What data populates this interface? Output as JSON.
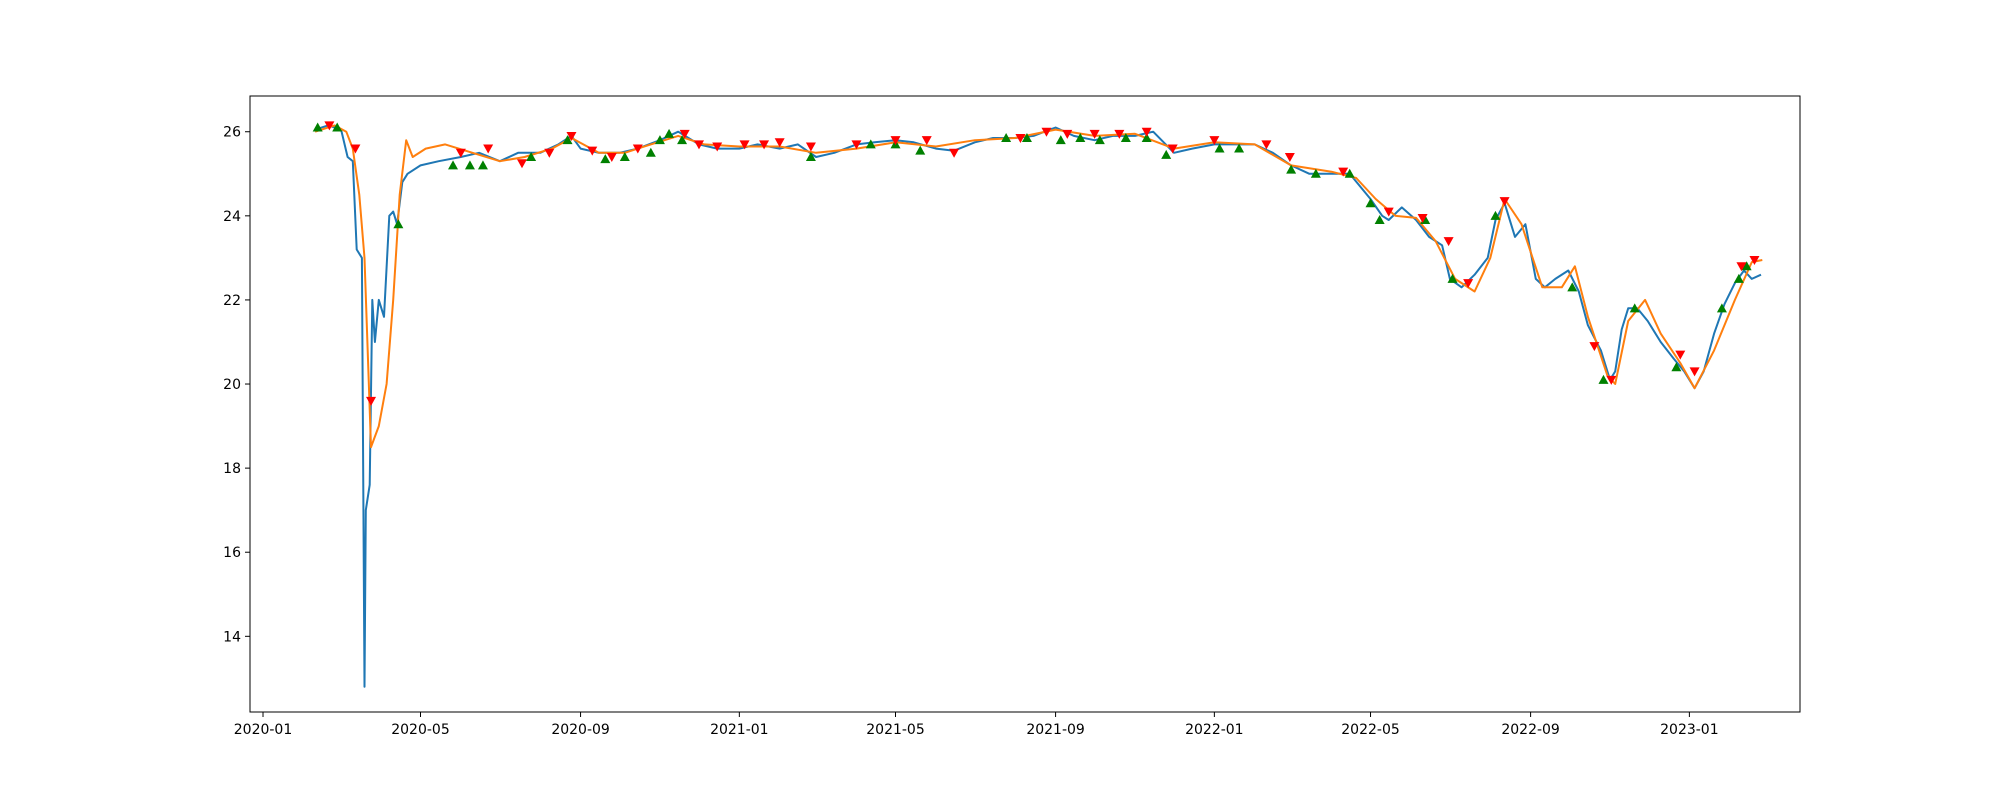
{
  "chart_data": {
    "type": "line",
    "title": "",
    "xlabel": "",
    "ylabel": "",
    "x_range": [
      "2019-12-22",
      "2023-03-27"
    ],
    "ylim": [
      12.2,
      26.85
    ],
    "grid": false,
    "legend": "none",
    "x_ticks": [
      "2020-01",
      "2020-05",
      "2020-09",
      "2021-01",
      "2021-05",
      "2021-09",
      "2022-01",
      "2022-05",
      "2022-09",
      "2023-01"
    ],
    "y_ticks": [
      14,
      16,
      18,
      20,
      22,
      24,
      26
    ],
    "colors": {
      "price": "#1f77b4",
      "moving_average": "#ff7f0e",
      "buy_marker": "#008000",
      "sell_marker": "#ff0000"
    },
    "series": [
      {
        "key": "price",
        "values": [
          [
            "2020-02-10",
            26.05
          ],
          [
            "2020-02-20",
            26.15
          ],
          [
            "2020-03-01",
            26.05
          ],
          [
            "2020-03-06",
            25.4
          ],
          [
            "2020-03-10",
            25.3
          ],
          [
            "2020-03-13",
            23.2
          ],
          [
            "2020-03-17",
            23.0
          ],
          [
            "2020-03-19",
            12.8
          ],
          [
            "2020-03-20",
            17.0
          ],
          [
            "2020-03-23",
            17.6
          ],
          [
            "2020-03-25",
            22.0
          ],
          [
            "2020-03-27",
            21.0
          ],
          [
            "2020-03-30",
            22.0
          ],
          [
            "2020-04-03",
            21.6
          ],
          [
            "2020-04-07",
            24.0
          ],
          [
            "2020-04-10",
            24.1
          ],
          [
            "2020-04-13",
            23.8
          ],
          [
            "2020-04-17",
            24.8
          ],
          [
            "2020-04-21",
            25.0
          ],
          [
            "2020-05-01",
            25.2
          ],
          [
            "2020-05-15",
            25.3
          ],
          [
            "2020-06-01",
            25.4
          ],
          [
            "2020-06-15",
            25.5
          ],
          [
            "2020-07-01",
            25.3
          ],
          [
            "2020-07-15",
            25.5
          ],
          [
            "2020-08-01",
            25.5
          ],
          [
            "2020-08-15",
            25.7
          ],
          [
            "2020-08-25",
            25.9
          ],
          [
            "2020-09-01",
            25.6
          ],
          [
            "2020-09-15",
            25.5
          ],
          [
            "2020-10-01",
            25.5
          ],
          [
            "2020-10-15",
            25.6
          ],
          [
            "2020-11-01",
            25.8
          ],
          [
            "2020-11-15",
            26.0
          ],
          [
            "2020-12-01",
            25.7
          ],
          [
            "2020-12-15",
            25.6
          ],
          [
            "2021-01-01",
            25.6
          ],
          [
            "2021-01-15",
            25.7
          ],
          [
            "2021-02-01",
            25.6
          ],
          [
            "2021-02-15",
            25.7
          ],
          [
            "2021-03-01",
            25.4
          ],
          [
            "2021-03-15",
            25.5
          ],
          [
            "2021-04-01",
            25.7
          ],
          [
            "2021-04-15",
            25.75
          ],
          [
            "2021-05-01",
            25.8
          ],
          [
            "2021-05-15",
            25.75
          ],
          [
            "2021-06-01",
            25.6
          ],
          [
            "2021-06-15",
            25.55
          ],
          [
            "2021-07-01",
            25.75
          ],
          [
            "2021-07-15",
            25.85
          ],
          [
            "2021-08-01",
            25.85
          ],
          [
            "2021-08-15",
            25.9
          ],
          [
            "2021-09-01",
            26.1
          ],
          [
            "2021-09-15",
            25.9
          ],
          [
            "2021-10-01",
            25.8
          ],
          [
            "2021-10-15",
            25.9
          ],
          [
            "2021-11-01",
            25.9
          ],
          [
            "2021-11-15",
            26.0
          ],
          [
            "2021-12-01",
            25.5
          ],
          [
            "2021-12-15",
            25.6
          ],
          [
            "2022-01-01",
            25.7
          ],
          [
            "2022-01-15",
            25.7
          ],
          [
            "2022-02-01",
            25.7
          ],
          [
            "2022-02-15",
            25.5
          ],
          [
            "2022-03-01",
            25.2
          ],
          [
            "2022-03-15",
            25.0
          ],
          [
            "2022-04-01",
            25.0
          ],
          [
            "2022-04-15",
            25.0
          ],
          [
            "2022-05-01",
            24.4
          ],
          [
            "2022-05-10",
            24.0
          ],
          [
            "2022-05-15",
            23.9
          ],
          [
            "2022-05-25",
            24.2
          ],
          [
            "2022-06-05",
            23.9
          ],
          [
            "2022-06-15",
            23.5
          ],
          [
            "2022-06-25",
            23.3
          ],
          [
            "2022-07-01",
            22.5
          ],
          [
            "2022-07-10",
            22.3
          ],
          [
            "2022-07-20",
            22.6
          ],
          [
            "2022-07-30",
            23.0
          ],
          [
            "2022-08-05",
            23.9
          ],
          [
            "2022-08-12",
            24.3
          ],
          [
            "2022-08-20",
            23.5
          ],
          [
            "2022-08-28",
            23.8
          ],
          [
            "2022-09-05",
            22.5
          ],
          [
            "2022-09-12",
            22.3
          ],
          [
            "2022-09-20",
            22.5
          ],
          [
            "2022-09-30",
            22.7
          ],
          [
            "2022-10-08",
            22.2
          ],
          [
            "2022-10-15",
            21.4
          ],
          [
            "2022-10-25",
            20.8
          ],
          [
            "2022-11-01",
            20.1
          ],
          [
            "2022-11-05",
            20.3
          ],
          [
            "2022-11-10",
            21.3
          ],
          [
            "2022-11-15",
            21.8
          ],
          [
            "2022-11-22",
            21.8
          ],
          [
            "2022-11-30",
            21.5
          ],
          [
            "2022-12-10",
            21.0
          ],
          [
            "2022-12-20",
            20.6
          ],
          [
            "2022-12-28",
            20.3
          ],
          [
            "2023-01-05",
            19.9
          ],
          [
            "2023-01-12",
            20.3
          ],
          [
            "2023-01-20",
            21.2
          ],
          [
            "2023-01-28",
            21.9
          ],
          [
            "2023-02-05",
            22.4
          ],
          [
            "2023-02-12",
            22.7
          ],
          [
            "2023-02-18",
            22.5
          ],
          [
            "2023-02-25",
            22.6
          ]
        ]
      },
      {
        "key": "moving_average",
        "values": [
          [
            "2020-02-10",
            26.0
          ],
          [
            "2020-02-25",
            26.15
          ],
          [
            "2020-03-05",
            26.0
          ],
          [
            "2020-03-10",
            25.6
          ],
          [
            "2020-03-15",
            24.5
          ],
          [
            "2020-03-19",
            23.0
          ],
          [
            "2020-03-24",
            18.5
          ],
          [
            "2020-03-30",
            19.0
          ],
          [
            "2020-04-05",
            20.0
          ],
          [
            "2020-04-10",
            22.0
          ],
          [
            "2020-04-15",
            24.5
          ],
          [
            "2020-04-20",
            25.8
          ],
          [
            "2020-04-25",
            25.4
          ],
          [
            "2020-05-05",
            25.6
          ],
          [
            "2020-05-20",
            25.7
          ],
          [
            "2020-06-10",
            25.5
          ],
          [
            "2020-07-01",
            25.3
          ],
          [
            "2020-07-20",
            25.4
          ],
          [
            "2020-08-10",
            25.6
          ],
          [
            "2020-08-25",
            25.85
          ],
          [
            "2020-09-15",
            25.5
          ],
          [
            "2020-10-05",
            25.5
          ],
          [
            "2020-10-25",
            25.7
          ],
          [
            "2020-11-15",
            25.9
          ],
          [
            "2020-12-05",
            25.7
          ],
          [
            "2021-01-01",
            25.65
          ],
          [
            "2021-02-01",
            25.65
          ],
          [
            "2021-03-01",
            25.5
          ],
          [
            "2021-04-01",
            25.6
          ],
          [
            "2021-05-01",
            25.75
          ],
          [
            "2021-06-01",
            25.65
          ],
          [
            "2021-07-01",
            25.8
          ],
          [
            "2021-08-01",
            25.85
          ],
          [
            "2021-09-01",
            26.05
          ],
          [
            "2021-10-01",
            25.9
          ],
          [
            "2021-11-01",
            25.95
          ],
          [
            "2021-12-01",
            25.6
          ],
          [
            "2022-01-01",
            25.75
          ],
          [
            "2022-02-01",
            25.7
          ],
          [
            "2022-03-01",
            25.2
          ],
          [
            "2022-04-01",
            25.05
          ],
          [
            "2022-04-20",
            24.9
          ],
          [
            "2022-05-05",
            24.4
          ],
          [
            "2022-05-20",
            24.0
          ],
          [
            "2022-06-05",
            23.95
          ],
          [
            "2022-06-20",
            23.4
          ],
          [
            "2022-07-05",
            22.5
          ],
          [
            "2022-07-20",
            22.2
          ],
          [
            "2022-08-01",
            23.0
          ],
          [
            "2022-08-12",
            24.4
          ],
          [
            "2022-08-25",
            23.8
          ],
          [
            "2022-09-10",
            22.3
          ],
          [
            "2022-09-25",
            22.3
          ],
          [
            "2022-10-05",
            22.8
          ],
          [
            "2022-10-15",
            21.6
          ],
          [
            "2022-10-30",
            20.2
          ],
          [
            "2022-11-05",
            20.0
          ],
          [
            "2022-11-15",
            21.5
          ],
          [
            "2022-11-28",
            22.0
          ],
          [
            "2022-12-10",
            21.2
          ],
          [
            "2022-12-25",
            20.5
          ],
          [
            "2023-01-05",
            19.9
          ],
          [
            "2023-01-20",
            20.8
          ],
          [
            "2023-02-05",
            22.0
          ],
          [
            "2023-02-18",
            22.9
          ],
          [
            "2023-02-26",
            22.95
          ]
        ]
      },
      {
        "key": "buy_markers",
        "marker": "triangle-up",
        "values": [
          [
            "2020-02-12",
            26.1
          ],
          [
            "2020-02-27",
            26.1
          ],
          [
            "2020-04-14",
            23.8
          ],
          [
            "2020-05-26",
            25.2
          ],
          [
            "2020-06-08",
            25.2
          ],
          [
            "2020-06-18",
            25.2
          ],
          [
            "2020-07-25",
            25.4
          ],
          [
            "2020-08-22",
            25.8
          ],
          [
            "2020-09-20",
            25.35
          ],
          [
            "2020-10-05",
            25.4
          ],
          [
            "2020-10-25",
            25.5
          ],
          [
            "2020-11-01",
            25.8
          ],
          [
            "2020-11-08",
            25.95
          ],
          [
            "2020-11-18",
            25.8
          ],
          [
            "2021-02-25",
            25.4
          ],
          [
            "2021-04-12",
            25.7
          ],
          [
            "2021-05-01",
            25.7
          ],
          [
            "2021-05-20",
            25.55
          ],
          [
            "2021-07-25",
            25.85
          ],
          [
            "2021-08-10",
            25.85
          ],
          [
            "2021-09-05",
            25.8
          ],
          [
            "2021-09-20",
            25.85
          ],
          [
            "2021-10-05",
            25.8
          ],
          [
            "2021-10-25",
            25.85
          ],
          [
            "2021-11-10",
            25.85
          ],
          [
            "2021-11-25",
            25.45
          ],
          [
            "2022-01-05",
            25.6
          ],
          [
            "2022-01-20",
            25.6
          ],
          [
            "2022-03-01",
            25.1
          ],
          [
            "2022-03-20",
            25.0
          ],
          [
            "2022-04-15",
            25.0
          ],
          [
            "2022-05-01",
            24.3
          ],
          [
            "2022-05-08",
            23.9
          ],
          [
            "2022-06-12",
            23.9
          ],
          [
            "2022-07-03",
            22.5
          ],
          [
            "2022-08-05",
            24.0
          ],
          [
            "2022-10-03",
            22.3
          ],
          [
            "2022-10-27",
            20.1
          ],
          [
            "2022-11-20",
            21.8
          ],
          [
            "2022-12-22",
            20.4
          ],
          [
            "2023-01-26",
            21.8
          ],
          [
            "2023-02-08",
            22.5
          ],
          [
            "2023-02-14",
            22.8
          ]
        ]
      },
      {
        "key": "sell_markers",
        "marker": "triangle-down",
        "values": [
          [
            "2020-02-21",
            26.15
          ],
          [
            "2020-03-12",
            25.6
          ],
          [
            "2020-03-24",
            19.6
          ],
          [
            "2020-06-01",
            25.5
          ],
          [
            "2020-06-22",
            25.6
          ],
          [
            "2020-07-18",
            25.25
          ],
          [
            "2020-08-08",
            25.5
          ],
          [
            "2020-08-25",
            25.9
          ],
          [
            "2020-09-10",
            25.55
          ],
          [
            "2020-09-25",
            25.4
          ],
          [
            "2020-10-15",
            25.6
          ],
          [
            "2020-11-20",
            25.95
          ],
          [
            "2020-12-01",
            25.7
          ],
          [
            "2020-12-15",
            25.65
          ],
          [
            "2021-01-05",
            25.7
          ],
          [
            "2021-01-20",
            25.7
          ],
          [
            "2021-02-01",
            25.75
          ],
          [
            "2021-02-25",
            25.65
          ],
          [
            "2021-04-01",
            25.7
          ],
          [
            "2021-05-01",
            25.8
          ],
          [
            "2021-05-25",
            25.8
          ],
          [
            "2021-06-15",
            25.5
          ],
          [
            "2021-08-05",
            25.85
          ],
          [
            "2021-08-25",
            26.0
          ],
          [
            "2021-09-10",
            25.95
          ],
          [
            "2021-10-01",
            25.95
          ],
          [
            "2021-10-20",
            25.95
          ],
          [
            "2021-11-10",
            26.0
          ],
          [
            "2021-11-30",
            25.6
          ],
          [
            "2022-01-01",
            25.8
          ],
          [
            "2022-02-10",
            25.7
          ],
          [
            "2022-02-28",
            25.4
          ],
          [
            "2022-04-10",
            25.05
          ],
          [
            "2022-05-15",
            24.1
          ],
          [
            "2022-06-10",
            23.95
          ],
          [
            "2022-06-30",
            23.4
          ],
          [
            "2022-07-15",
            22.4
          ],
          [
            "2022-08-12",
            24.35
          ],
          [
            "2022-10-20",
            20.9
          ],
          [
            "2022-11-02",
            20.1
          ],
          [
            "2022-12-25",
            20.7
          ],
          [
            "2023-01-05",
            20.3
          ],
          [
            "2023-02-10",
            22.8
          ],
          [
            "2023-02-20",
            22.95
          ]
        ]
      }
    ]
  }
}
